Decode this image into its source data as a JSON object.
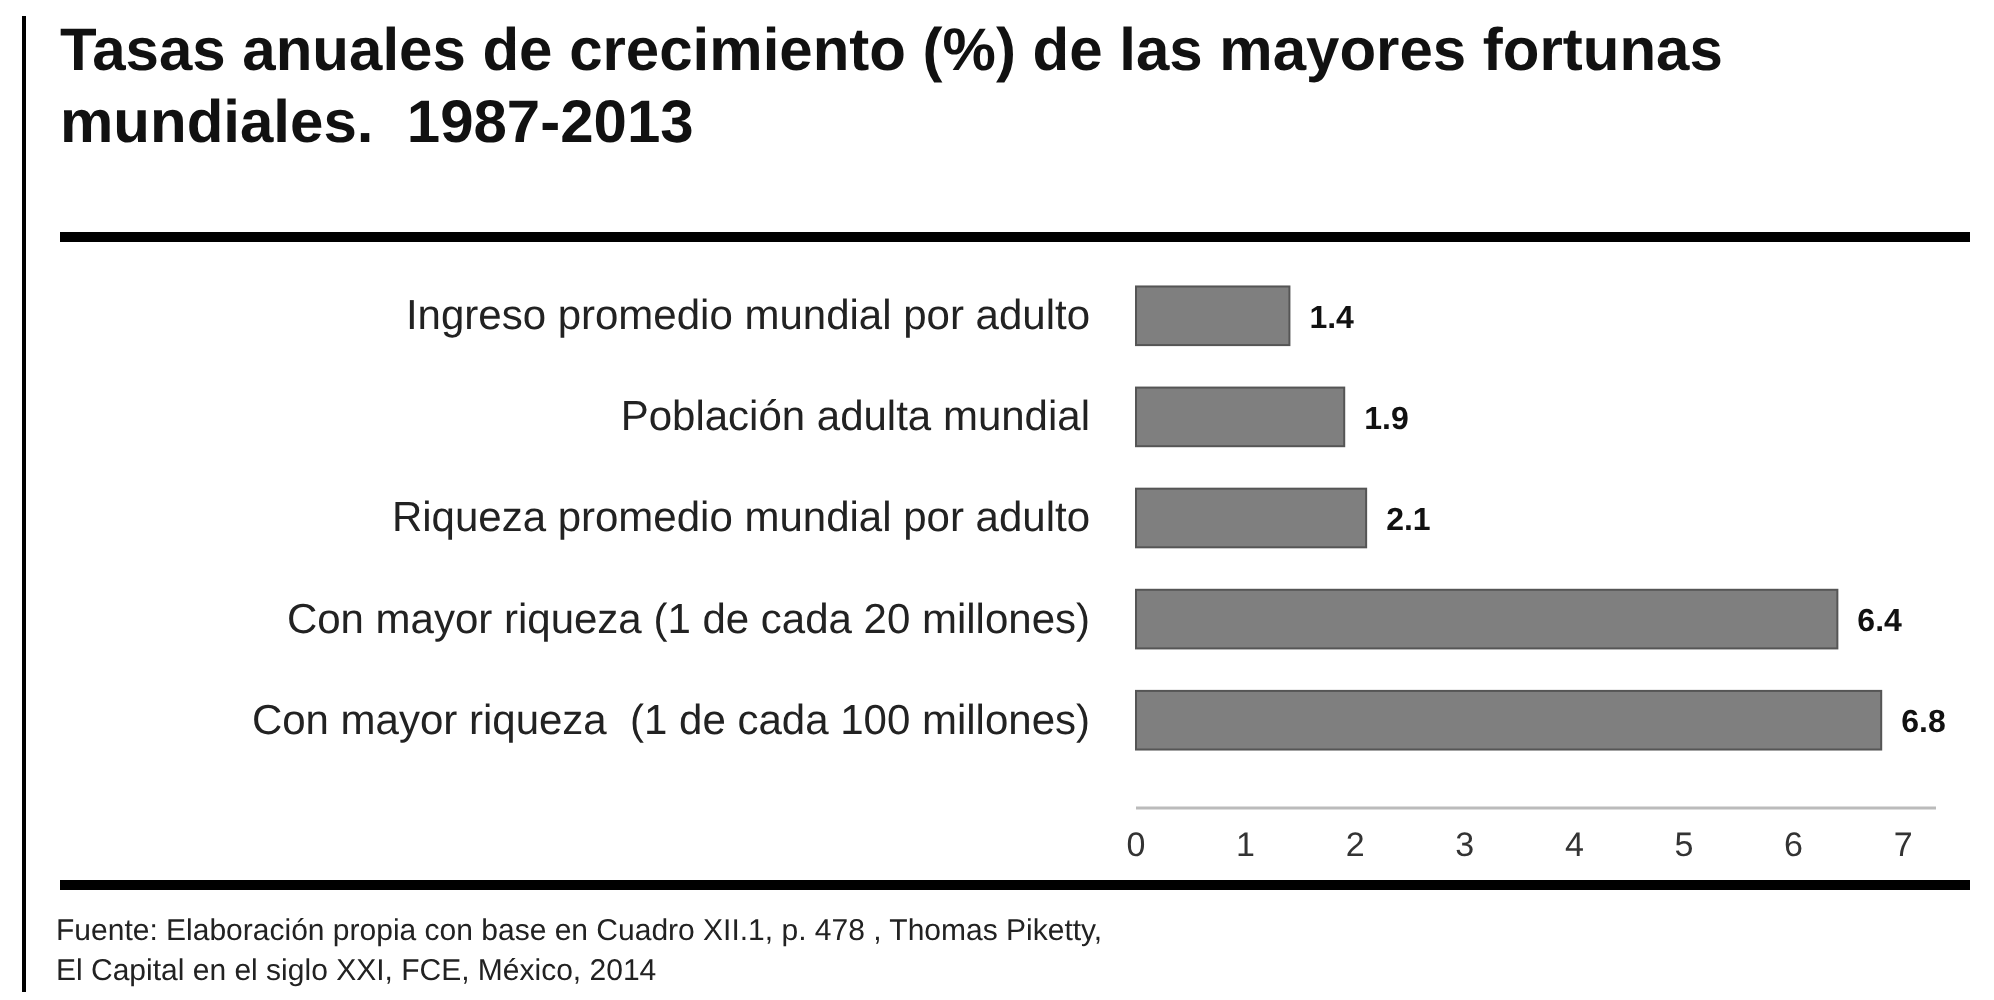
{
  "chart_data": {
    "type": "bar",
    "orientation": "horizontal",
    "title": "Tasas anuales de crecimiento (%) de las mayores fortunas mundiales.  1987-2013",
    "categories": [
      "Ingreso promedio mundial por adulto",
      "Población adulta mundial",
      "Riqueza promedio mundial por adulto",
      "Con mayor riqueza (1 de cada 20 millones)",
      "Con mayor riqueza  (1 de cada 100 millones)"
    ],
    "values": [
      1.4,
      1.9,
      2.1,
      6.4,
      6.8
    ],
    "color": "#7f7f7f",
    "xlim": [
      0,
      7.3
    ],
    "xticks": [
      0,
      1,
      2,
      3,
      4,
      5,
      6,
      7
    ],
    "data_labels": true,
    "grid": false,
    "annotations": [
      "Fuente: Elaboración propia con base en Cuadro XII.1, p. 478 , Thomas Piketty,",
      "El Capital en el siglo XXI, FCE, México, 2014"
    ]
  }
}
